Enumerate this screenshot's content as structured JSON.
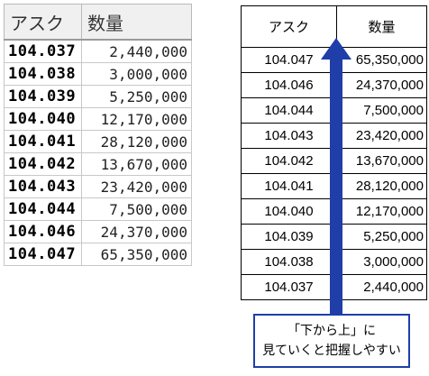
{
  "left_table": {
    "headers": {
      "ask": "アスク",
      "quantity": "数量"
    },
    "rows": [
      {
        "price": "104.037",
        "qty": "2,440,000"
      },
      {
        "price": "104.038",
        "qty": "3,000,000"
      },
      {
        "price": "104.039",
        "qty": "5,250,000"
      },
      {
        "price": "104.040",
        "qty": "12,170,000"
      },
      {
        "price": "104.041",
        "qty": "28,120,000"
      },
      {
        "price": "104.042",
        "qty": "13,670,000"
      },
      {
        "price": "104.043",
        "qty": "23,420,000"
      },
      {
        "price": "104.044",
        "qty": "7,500,000"
      },
      {
        "price": "104.046",
        "qty": "24,370,000"
      },
      {
        "price": "104.047",
        "qty": "65,350,000"
      }
    ]
  },
  "right_table": {
    "headers": {
      "ask": "アスク",
      "quantity": "数量"
    },
    "rows": [
      {
        "price": "104.047",
        "qty": "65,350,000"
      },
      {
        "price": "104.046",
        "qty": "24,370,000"
      },
      {
        "price": "104.044",
        "qty": "7,500,000"
      },
      {
        "price": "104.043",
        "qty": "23,420,000"
      },
      {
        "price": "104.042",
        "qty": "13,670,000"
      },
      {
        "price": "104.041",
        "qty": "28,120,000"
      },
      {
        "price": "104.040",
        "qty": "12,170,000"
      },
      {
        "price": "104.039",
        "qty": "5,250,000"
      },
      {
        "price": "104.038",
        "qty": "3,000,000"
      },
      {
        "price": "104.037",
        "qty": "2,440,000"
      }
    ]
  },
  "callout": {
    "line1": "「下から上」に",
    "line2": "見ていくと把握しやすい"
  },
  "colors": {
    "arrow": "#1f3ea8",
    "callout_border": "#1f3ea8"
  },
  "icons": {
    "arrow": "up-arrow-icon"
  }
}
